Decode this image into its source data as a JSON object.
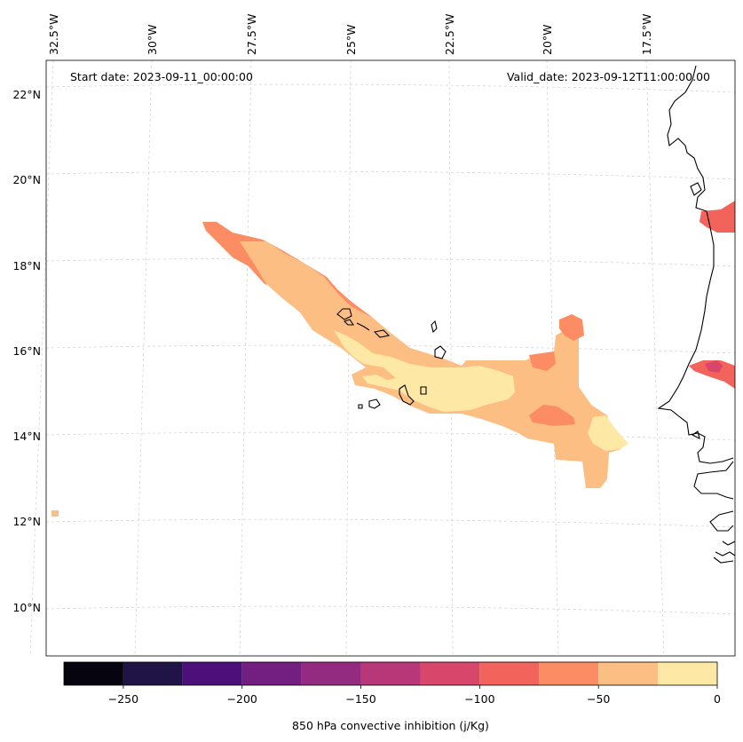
{
  "header": {
    "start_date": "Start date: 2023-09-11_00:00:00",
    "valid_date": "Valid_date: 2023-09-12T11:00:00.00"
  },
  "longitude_labels": [
    "32.5°W",
    "30°W",
    "27.5°W",
    "25°W",
    "22.5°W",
    "20°W",
    "17.5°W"
  ],
  "latitude_labels": [
    "22°N",
    "20°N",
    "18°N",
    "16°N",
    "14°N",
    "12°N",
    "10°N"
  ],
  "colorbar": {
    "label": "850 hPa convective inhibition (j/Kg)",
    "ticks": [
      "−250",
      "−200",
      "−150",
      "−100",
      "−50",
      "0"
    ],
    "tick_values": [
      -250,
      -200,
      -150,
      -100,
      -50,
      0
    ],
    "vmin": -275,
    "vmax": 0,
    "bins": [
      -275,
      -250,
      -225,
      -200,
      -175,
      -150,
      -125,
      -100,
      -75,
      -50,
      -25,
      0
    ],
    "colors": [
      "#05040f",
      "#201346",
      "#4d107b",
      "#731f81",
      "#932b80",
      "#b73779",
      "#d9466b",
      "#f2635c",
      "#fc8c63",
      "#fdbe84",
      "#fde8a6"
    ]
  },
  "legend_palette": {
    "land_outline": "#000000",
    "cin_-25_0": "#fde8a6",
    "cin_-50_-25": "#fdbe84",
    "cin_-75_-50": "#fc8c63",
    "cin_-100_-75": "#f2635c",
    "cin_-125_-100": "#d9466b"
  }
}
